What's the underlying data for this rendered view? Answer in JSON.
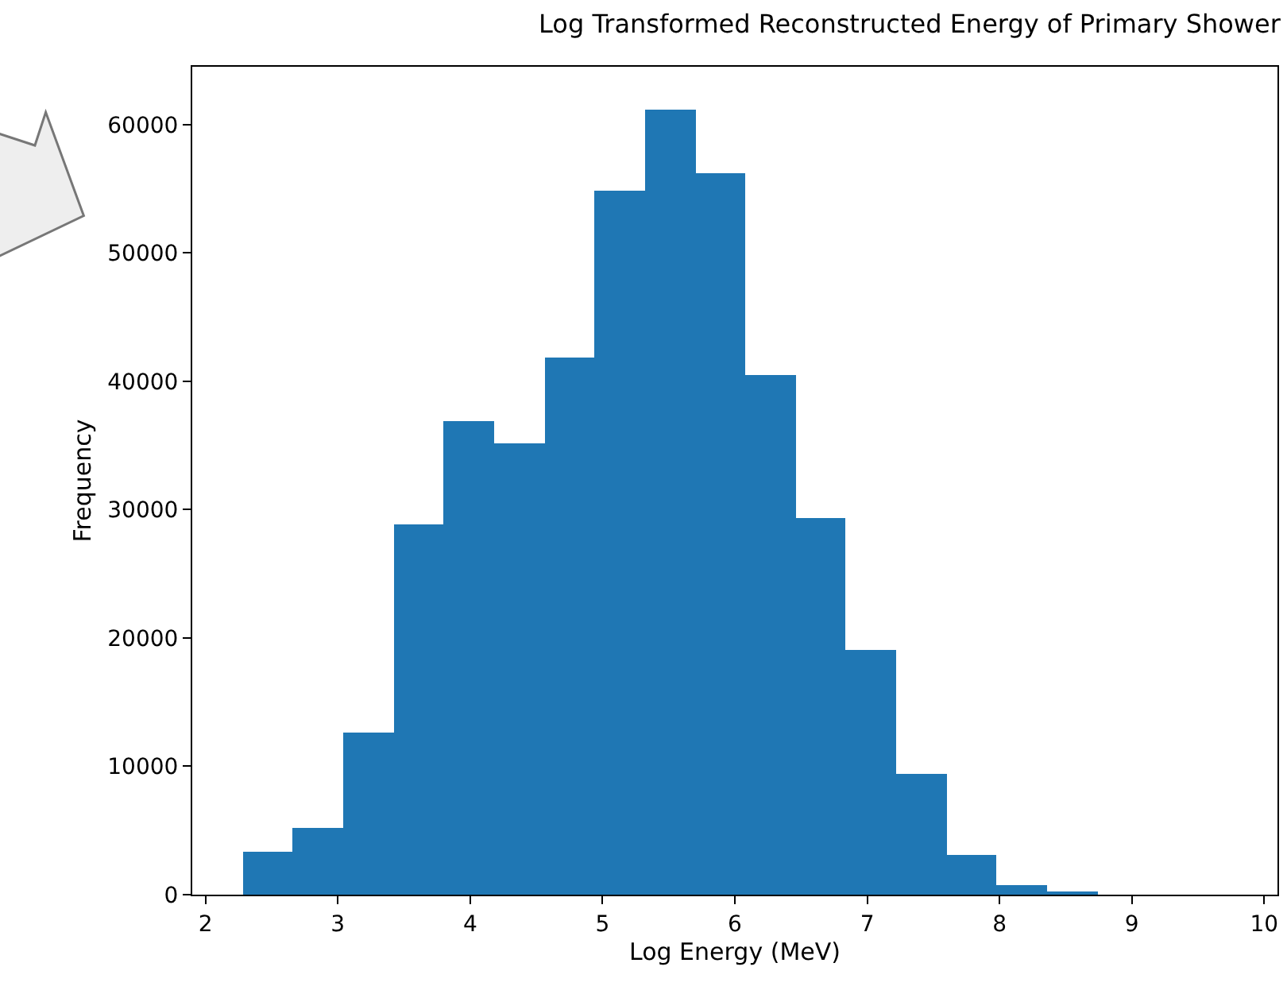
{
  "chart_data": {
    "type": "histogram",
    "title": "Log Transformed Reconstructed Energy of Primary Shower",
    "xlabel": "Log Energy (MeV)",
    "ylabel": "Frequency",
    "bins": [
      2.28,
      2.66,
      3.04,
      3.42,
      3.8,
      4.18,
      4.56,
      4.94,
      5.32,
      5.7,
      6.08,
      6.46,
      6.84,
      7.22,
      7.6,
      7.98,
      8.36,
      8.74,
      9.12,
      9.5,
      9.88
    ],
    "values": [
      3300,
      5200,
      12600,
      28900,
      36900,
      35200,
      41800,
      54800,
      61100,
      56200,
      40500,
      29400,
      19100,
      9400,
      3100,
      700,
      200,
      0,
      0,
      0
    ],
    "color": "#1f77b4",
    "xlim": [
      1.9,
      10.1
    ],
    "xticks": [
      2,
      3,
      4,
      5,
      6,
      7,
      8,
      9,
      10
    ],
    "ylim": [
      0,
      64500
    ],
    "yticks": [
      0,
      10000,
      20000,
      30000,
      40000,
      50000,
      60000
    ],
    "grid": false
  }
}
